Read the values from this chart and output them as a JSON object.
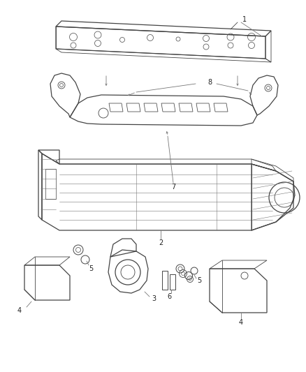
{
  "bg_color": "#ffffff",
  "line_color": "#777777",
  "line_color_dark": "#444444",
  "fig_width": 4.38,
  "fig_height": 5.33,
  "dpi": 100,
  "label_fs": 7
}
